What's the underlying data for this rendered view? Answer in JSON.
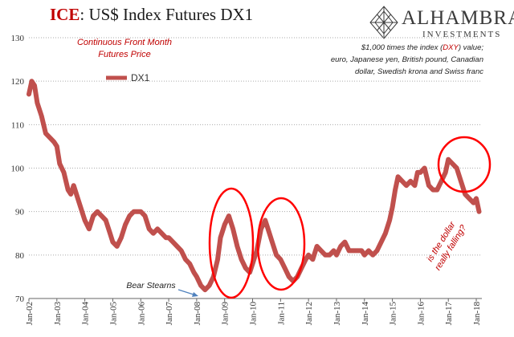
{
  "header": {
    "title_prefix": "ICE",
    "title_rest": ": US$ Index Futures DX1",
    "logo_name": "ALHAMBRA",
    "logo_sub": "INVESTMENTS"
  },
  "annotations": {
    "series_desc_line1": "Continuous  Front Month",
    "series_desc_line2": "Futures Price",
    "desc_line1_a": "$1,000 times the index (",
    "desc_line1_b": "DXY",
    "desc_line1_c": ") value;",
    "desc_line2": "euro, Japanese yen, British pound, Canadian",
    "desc_line3": "dollar, Swedish krona and Swiss franc",
    "bear_stearns": "Bear Stearns",
    "question_line1": "is the dollar",
    "question_line2": "really falling?"
  },
  "colors": {
    "series": "#c0504d",
    "highlight": "#ff0000",
    "arrow": "#4f81bd",
    "grid": "#aaaaaa"
  },
  "chart_data": {
    "type": "line",
    "title": "ICE: US$ Index Futures DX1",
    "legend": [
      "DX1"
    ],
    "legend_position": "top-left",
    "grid": true,
    "y_axis": {
      "min": 70,
      "max": 130,
      "ticks": [
        70,
        80,
        90,
        100,
        110,
        120,
        130
      ]
    },
    "x_axis": {
      "min": 2002.0,
      "max": 2018.2,
      "tick_labels": [
        "Jan-02",
        "Jan-03",
        "Jan-04",
        "Jan-05",
        "Jan-06",
        "Jan-07",
        "Jan-08",
        "Jan-09",
        "Jan-10",
        "Jan-11",
        "Jan-12",
        "Jan-13",
        "Jan-14",
        "Jan-15",
        "Jan-16",
        "Jan-17",
        "Jan-18"
      ]
    },
    "series": [
      {
        "name": "DX1",
        "x": [
          2002.0,
          2002.1,
          2002.2,
          2002.3,
          2002.45,
          2002.6,
          2002.75,
          2002.9,
          2003.0,
          2003.1,
          2003.25,
          2003.4,
          2003.5,
          2003.6,
          2003.75,
          2003.9,
          2004.0,
          2004.15,
          2004.3,
          2004.45,
          2004.6,
          2004.75,
          2004.9,
          2005.0,
          2005.15,
          2005.3,
          2005.45,
          2005.6,
          2005.75,
          2005.9,
          2006.0,
          2006.15,
          2006.3,
          2006.45,
          2006.6,
          2006.75,
          2006.9,
          2007.0,
          2007.15,
          2007.3,
          2007.45,
          2007.6,
          2007.75,
          2007.9,
          2008.0,
          2008.15,
          2008.3,
          2008.45,
          2008.6,
          2008.75,
          2008.85,
          2008.95,
          2009.0,
          2009.15,
          2009.3,
          2009.45,
          2009.6,
          2009.75,
          2009.9,
          2010.0,
          2010.15,
          2010.3,
          2010.45,
          2010.55,
          2010.7,
          2010.85,
          2011.0,
          2011.15,
          2011.3,
          2011.45,
          2011.6,
          2011.75,
          2011.9,
          2012.0,
          2012.15,
          2012.3,
          2012.45,
          2012.6,
          2012.75,
          2012.9,
          2013.0,
          2013.15,
          2013.3,
          2013.45,
          2013.6,
          2013.75,
          2013.9,
          2014.0,
          2014.15,
          2014.3,
          2014.45,
          2014.6,
          2014.75,
          2014.9,
          2015.0,
          2015.1,
          2015.2,
          2015.35,
          2015.5,
          2015.65,
          2015.8,
          2015.9,
          2016.0,
          2016.15,
          2016.3,
          2016.45,
          2016.6,
          2016.75,
          2016.9,
          2017.0,
          2017.15,
          2017.3,
          2017.45,
          2017.6,
          2017.75,
          2017.9,
          2018.0,
          2018.1
        ],
        "values": [
          117,
          120,
          119,
          115,
          112,
          108,
          107,
          106,
          105,
          101,
          99,
          95,
          94,
          96,
          93,
          90,
          88,
          86,
          89,
          90,
          89,
          88,
          85,
          83,
          82,
          84,
          87,
          89,
          90,
          90,
          90,
          89,
          86,
          85,
          86,
          85,
          84,
          84,
          83,
          82,
          81,
          79,
          78,
          76,
          75,
          73,
          72,
          73,
          75,
          79,
          84,
          86,
          87,
          89,
          86,
          82,
          79,
          77,
          76,
          78,
          81,
          86,
          88,
          86,
          83,
          80,
          79,
          77,
          75,
          74,
          75,
          77,
          79,
          80,
          79,
          82,
          81,
          80,
          80,
          81,
          80,
          82,
          83,
          81,
          81,
          81,
          81,
          80,
          81,
          80,
          81,
          83,
          85,
          88,
          91,
          95,
          98,
          97,
          96,
          97,
          96,
          99,
          99,
          100,
          96,
          95,
          95,
          97,
          99,
          102,
          101,
          100,
          97,
          94,
          93,
          92,
          93,
          90
        ]
      }
    ],
    "highlights": [
      "2008.9–2010.0",
      "2010.6–2011.7",
      "2016.9–2018.15"
    ]
  }
}
